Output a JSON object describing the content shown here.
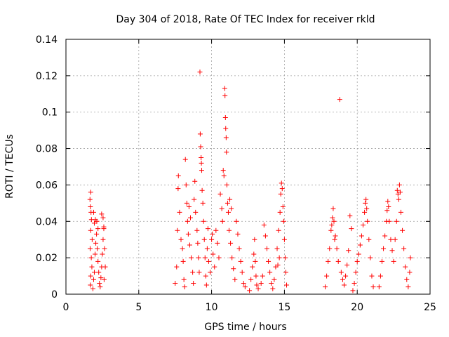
{
  "chart_data": {
    "type": "scatter",
    "title": "Day 304 of 2018, Rate Of TEC Index for receiver rkld",
    "xlabel": "GPS time / hours",
    "ylabel": "ROTI / TECUs",
    "xlim": [
      0,
      25
    ],
    "ylim": [
      0,
      0.14
    ],
    "xticks": [
      0,
      5,
      10,
      15,
      20,
      25
    ],
    "xtick_labels": [
      "0",
      "5",
      "10",
      "15",
      "20",
      "25"
    ],
    "yticks": [
      0,
      0.02,
      0.04,
      0.06,
      0.08,
      0.1,
      0.12,
      0.14
    ],
    "ytick_labels": [
      "0",
      "0.02",
      "0.04",
      "0.06",
      "0.08",
      "0.1",
      "0.12",
      "0.14"
    ],
    "grid": true,
    "marker": "+",
    "color": "#ff0000",
    "series": [
      {
        "name": "ROTI",
        "points": [
          [
            1.65,
            0.052
          ],
          [
            1.68,
            0.048
          ],
          [
            1.7,
            0.056
          ],
          [
            1.72,
            0.045
          ],
          [
            1.75,
            0.041
          ],
          [
            1.7,
            0.035
          ],
          [
            1.8,
            0.03
          ],
          [
            1.66,
            0.025
          ],
          [
            1.74,
            0.02
          ],
          [
            1.78,
            0.015
          ],
          [
            1.7,
            0.01
          ],
          [
            1.68,
            0.005
          ],
          [
            1.85,
            0.003
          ],
          [
            1.9,
            0.008
          ],
          [
            1.95,
            0.012
          ],
          [
            2.0,
            0.022
          ],
          [
            2.05,
            0.028
          ],
          [
            2.1,
            0.033
          ],
          [
            2.15,
            0.025
          ],
          [
            2.2,
            0.018
          ],
          [
            2.25,
            0.012
          ],
          [
            2.3,
            0.006
          ],
          [
            2.35,
            0.004
          ],
          [
            2.4,
            0.009
          ],
          [
            2.45,
            0.015
          ],
          [
            2.5,
            0.022
          ],
          [
            2.55,
            0.03
          ],
          [
            2.6,
            0.036
          ],
          [
            2.65,
            0.025
          ],
          [
            2.7,
            0.015
          ],
          [
            2.62,
            0.008
          ],
          [
            2.45,
            0.044
          ],
          [
            2.55,
            0.042
          ],
          [
            2.6,
            0.037
          ],
          [
            1.9,
            0.045
          ],
          [
            1.95,
            0.039
          ],
          [
            2.02,
            0.041
          ],
          [
            2.12,
            0.04
          ],
          [
            2.2,
            0.036
          ],
          [
            7.5,
            0.006
          ],
          [
            7.6,
            0.015
          ],
          [
            7.65,
            0.035
          ],
          [
            7.7,
            0.058
          ],
          [
            7.72,
            0.065
          ],
          [
            7.8,
            0.045
          ],
          [
            7.9,
            0.03
          ],
          [
            8.0,
            0.025
          ],
          [
            8.05,
            0.018
          ],
          [
            8.1,
            0.008
          ],
          [
            8.15,
            0.004
          ],
          [
            8.2,
            0.074
          ],
          [
            8.25,
            0.06
          ],
          [
            8.3,
            0.05
          ],
          [
            8.35,
            0.04
          ],
          [
            8.4,
            0.033
          ],
          [
            8.5,
            0.027
          ],
          [
            8.6,
            0.02
          ],
          [
            8.7,
            0.012
          ],
          [
            8.75,
            0.006
          ],
          [
            8.8,
            0.052
          ],
          [
            8.85,
            0.062
          ],
          [
            8.9,
            0.045
          ],
          [
            9.0,
            0.035
          ],
          [
            9.05,
            0.028
          ],
          [
            9.1,
            0.02
          ],
          [
            9.15,
            0.012
          ],
          [
            9.2,
            0.122
          ],
          [
            9.22,
            0.088
          ],
          [
            9.25,
            0.081
          ],
          [
            9.28,
            0.075
          ],
          [
            9.3,
            0.072
          ],
          [
            9.32,
            0.068
          ],
          [
            9.35,
            0.057
          ],
          [
            9.4,
            0.05
          ],
          [
            9.45,
            0.04
          ],
          [
            9.5,
            0.03
          ],
          [
            9.55,
            0.02
          ],
          [
            9.6,
            0.01
          ],
          [
            9.65,
            0.005
          ],
          [
            9.7,
            0.025
          ],
          [
            9.8,
            0.018
          ],
          [
            9.9,
            0.012
          ],
          [
            10.0,
            0.03
          ],
          [
            10.1,
            0.022
          ],
          [
            10.2,
            0.015
          ],
          [
            10.3,
            0.035
          ],
          [
            10.4,
            0.028
          ],
          [
            10.5,
            0.02
          ],
          [
            10.6,
            0.055
          ],
          [
            10.7,
            0.047
          ],
          [
            10.75,
            0.04
          ],
          [
            10.8,
            0.068
          ],
          [
            10.85,
            0.065
          ],
          [
            10.9,
            0.113
          ],
          [
            10.92,
            0.109
          ],
          [
            10.95,
            0.097
          ],
          [
            10.97,
            0.091
          ],
          [
            11.0,
            0.086
          ],
          [
            11.02,
            0.078
          ],
          [
            11.05,
            0.06
          ],
          [
            11.1,
            0.05
          ],
          [
            11.15,
            0.045
          ],
          [
            11.2,
            0.035
          ],
          [
            11.3,
            0.028
          ],
          [
            11.4,
            0.02
          ],
          [
            11.5,
            0.014
          ],
          [
            11.6,
            0.008
          ],
          [
            11.7,
            0.04
          ],
          [
            11.8,
            0.033
          ],
          [
            11.9,
            0.025
          ],
          [
            12.0,
            0.018
          ],
          [
            12.1,
            0.012
          ],
          [
            12.2,
            0.006
          ],
          [
            12.3,
            0.004
          ],
          [
            11.25,
            0.052
          ],
          [
            11.35,
            0.047
          ],
          [
            8.45,
            0.048
          ],
          [
            8.55,
            0.042
          ],
          [
            9.75,
            0.036
          ],
          [
            10.05,
            0.033
          ],
          [
            12.6,
            0.002
          ],
          [
            12.7,
            0.008
          ],
          [
            12.8,
            0.015
          ],
          [
            12.9,
            0.022
          ],
          [
            12.95,
            0.03
          ],
          [
            13.0,
            0.018
          ],
          [
            13.05,
            0.01
          ],
          [
            13.1,
            0.005
          ],
          [
            13.2,
            0.003
          ],
          [
            13.4,
            0.006
          ],
          [
            13.5,
            0.01
          ],
          [
            13.6,
            0.038
          ],
          [
            13.7,
            0.032
          ],
          [
            13.8,
            0.025
          ],
          [
            13.9,
            0.018
          ],
          [
            14.0,
            0.012
          ],
          [
            14.1,
            0.006
          ],
          [
            14.2,
            0.003
          ],
          [
            14.3,
            0.008
          ],
          [
            14.4,
            0.015
          ],
          [
            14.5,
            0.025
          ],
          [
            14.6,
            0.035
          ],
          [
            14.7,
            0.045
          ],
          [
            14.75,
            0.055
          ],
          [
            14.8,
            0.061
          ],
          [
            14.85,
            0.058
          ],
          [
            14.9,
            0.048
          ],
          [
            14.95,
            0.04
          ],
          [
            15.0,
            0.03
          ],
          [
            15.05,
            0.02
          ],
          [
            15.1,
            0.012
          ],
          [
            15.15,
            0.005
          ],
          [
            14.65,
            0.02
          ],
          [
            14.55,
            0.016
          ],
          [
            17.8,
            0.004
          ],
          [
            17.9,
            0.01
          ],
          [
            18.0,
            0.018
          ],
          [
            18.1,
            0.025
          ],
          [
            18.2,
            0.035
          ],
          [
            18.3,
            0.042
          ],
          [
            18.35,
            0.047
          ],
          [
            18.4,
            0.04
          ],
          [
            18.5,
            0.032
          ],
          [
            18.6,
            0.025
          ],
          [
            18.7,
            0.018
          ],
          [
            18.8,
            0.107
          ],
          [
            18.9,
            0.012
          ],
          [
            19.0,
            0.008
          ],
          [
            19.1,
            0.005
          ],
          [
            19.2,
            0.01
          ],
          [
            19.3,
            0.016
          ],
          [
            19.4,
            0.024
          ],
          [
            19.5,
            0.043
          ],
          [
            19.6,
            0.036
          ],
          [
            19.7,
            0.002
          ],
          [
            19.8,
            0.006
          ],
          [
            19.9,
            0.012
          ],
          [
            20.0,
            0.018
          ],
          [
            20.1,
            0.022
          ],
          [
            20.2,
            0.027
          ],
          [
            20.3,
            0.032
          ],
          [
            20.4,
            0.038
          ],
          [
            20.5,
            0.045
          ],
          [
            20.55,
            0.05
          ],
          [
            20.6,
            0.052
          ],
          [
            20.65,
            0.047
          ],
          [
            20.7,
            0.04
          ],
          [
            20.8,
            0.03
          ],
          [
            20.9,
            0.02
          ],
          [
            21.0,
            0.01
          ],
          [
            21.1,
            0.004
          ],
          [
            21.5,
            0.004
          ],
          [
            21.6,
            0.01
          ],
          [
            21.7,
            0.018
          ],
          [
            21.8,
            0.025
          ],
          [
            21.9,
            0.032
          ],
          [
            22.0,
            0.04
          ],
          [
            22.05,
            0.046
          ],
          [
            22.1,
            0.051
          ],
          [
            22.15,
            0.048
          ],
          [
            22.2,
            0.04
          ],
          [
            22.3,
            0.03
          ],
          [
            22.4,
            0.024
          ],
          [
            22.5,
            0.018
          ],
          [
            22.6,
            0.03
          ],
          [
            22.7,
            0.04
          ],
          [
            22.75,
            0.057
          ],
          [
            22.8,
            0.055
          ],
          [
            22.85,
            0.052
          ],
          [
            22.9,
            0.06
          ],
          [
            22.95,
            0.056
          ],
          [
            23.0,
            0.045
          ],
          [
            23.1,
            0.035
          ],
          [
            23.2,
            0.025
          ],
          [
            23.3,
            0.015
          ],
          [
            23.4,
            0.008
          ],
          [
            23.5,
            0.004
          ],
          [
            23.6,
            0.012
          ],
          [
            23.65,
            0.02
          ],
          [
            18.25,
            0.038
          ],
          [
            18.45,
            0.03
          ]
        ]
      }
    ]
  }
}
